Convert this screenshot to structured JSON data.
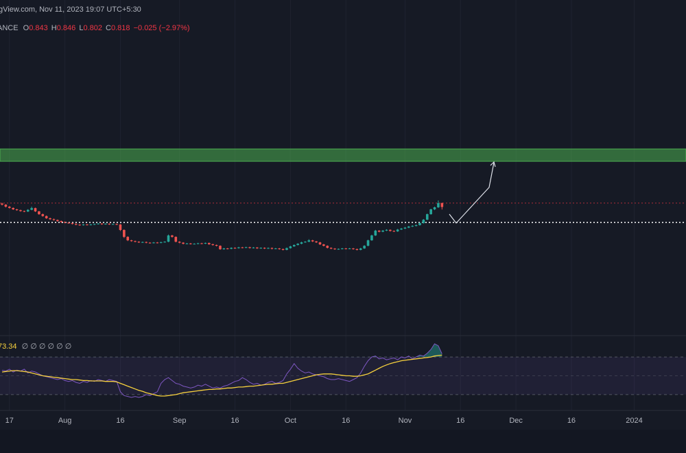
{
  "header": {
    "source_line": "gView.com, Nov 11, 2023 19:07 UTC+5:30",
    "symbol": "ANCE",
    "open_key": "O",
    "high_key": "H",
    "low_key": "L",
    "close_key": "C",
    "change": "−0.025 (−2.97%)"
  },
  "chart_data": {
    "type": "candlestick",
    "up_color": "#26a69a",
    "down_color": "#ef5350",
    "xlim": [
      -0.56,
      185
    ],
    "ylim": [
      0,
      1.9
    ],
    "xticks": [
      {
        "value": 2,
        "label": "17"
      },
      {
        "value": 17,
        "label": "Aug"
      },
      {
        "value": 32,
        "label": "16"
      },
      {
        "value": 48,
        "label": "Sep"
      },
      {
        "value": 63,
        "label": "16"
      },
      {
        "value": 78,
        "label": "Oct"
      },
      {
        "value": 93,
        "label": "16"
      },
      {
        "value": 109,
        "label": "Nov"
      },
      {
        "value": 124,
        "label": "16"
      },
      {
        "value": 139,
        "label": "Dec"
      },
      {
        "value": 154,
        "label": "16"
      },
      {
        "value": 171,
        "label": "2024"
      }
    ],
    "grid": true,
    "zone": {
      "low": 1.11,
      "high": 1.189,
      "color": "#4caf50"
    },
    "price_lines": [
      {
        "value": 0.843,
        "color": "#f23645",
        "style": "dotted"
      },
      {
        "value": 0.719,
        "color": "#ffffff",
        "style": "dotted"
      }
    ],
    "candles": [
      [
        0.84,
        0.845,
        0.828,
        0.833
      ],
      [
        0.833,
        0.836,
        0.815,
        0.82
      ],
      [
        0.82,
        0.824,
        0.808,
        0.812
      ],
      [
        0.812,
        0.815,
        0.799,
        0.803
      ],
      [
        0.803,
        0.806,
        0.794,
        0.798
      ],
      [
        0.798,
        0.801,
        0.788,
        0.792
      ],
      [
        0.792,
        0.795,
        0.785,
        0.789
      ],
      [
        0.789,
        0.804,
        0.786,
        0.8
      ],
      [
        0.8,
        0.82,
        0.797,
        0.811
      ],
      [
        0.811,
        0.814,
        0.786,
        0.79
      ],
      [
        0.79,
        0.793,
        0.768,
        0.772
      ],
      [
        0.772,
        0.776,
        0.756,
        0.76
      ],
      [
        0.76,
        0.764,
        0.742,
        0.746
      ],
      [
        0.746,
        0.75,
        0.736,
        0.74
      ],
      [
        0.74,
        0.744,
        0.731,
        0.735
      ],
      [
        0.735,
        0.738,
        0.724,
        0.728
      ],
      [
        0.728,
        0.731,
        0.718,
        0.722
      ],
      [
        0.722,
        0.725,
        0.714,
        0.718
      ],
      [
        0.718,
        0.721,
        0.711,
        0.715
      ],
      [
        0.715,
        0.718,
        0.706,
        0.71
      ],
      [
        0.71,
        0.713,
        0.701,
        0.705
      ],
      [
        0.705,
        0.708,
        0.698,
        0.702
      ],
      [
        0.702,
        0.709,
        0.699,
        0.706
      ],
      [
        0.706,
        0.709,
        0.7,
        0.704
      ],
      [
        0.704,
        0.709,
        0.701,
        0.706
      ],
      [
        0.706,
        0.712,
        0.703,
        0.709
      ],
      [
        0.709,
        0.715,
        0.706,
        0.712
      ],
      [
        0.712,
        0.715,
        0.704,
        0.708
      ],
      [
        0.708,
        0.714,
        0.705,
        0.711
      ],
      [
        0.711,
        0.714,
        0.703,
        0.707
      ],
      [
        0.707,
        0.712,
        0.704,
        0.709
      ],
      [
        0.709,
        0.712,
        0.702,
        0.706
      ],
      [
        0.706,
        0.709,
        0.665,
        0.671
      ],
      [
        0.671,
        0.675,
        0.62,
        0.627
      ],
      [
        0.627,
        0.631,
        0.6,
        0.605
      ],
      [
        0.605,
        0.608,
        0.596,
        0.6
      ],
      [
        0.6,
        0.603,
        0.592,
        0.596
      ],
      [
        0.596,
        0.599,
        0.588,
        0.592
      ],
      [
        0.592,
        0.597,
        0.589,
        0.594
      ],
      [
        0.594,
        0.597,
        0.586,
        0.59
      ],
      [
        0.59,
        0.593,
        0.584,
        0.588
      ],
      [
        0.588,
        0.594,
        0.585,
        0.591
      ],
      [
        0.591,
        0.594,
        0.585,
        0.589
      ],
      [
        0.589,
        0.596,
        0.586,
        0.593
      ],
      [
        0.593,
        0.599,
        0.59,
        0.596
      ],
      [
        0.596,
        0.642,
        0.593,
        0.636
      ],
      [
        0.636,
        0.64,
        0.622,
        0.627
      ],
      [
        0.627,
        0.63,
        0.592,
        0.596
      ],
      [
        0.596,
        0.599,
        0.586,
        0.59
      ],
      [
        0.59,
        0.593,
        0.579,
        0.583
      ],
      [
        0.583,
        0.588,
        0.58,
        0.585
      ],
      [
        0.585,
        0.588,
        0.578,
        0.582
      ],
      [
        0.582,
        0.586,
        0.579,
        0.583
      ],
      [
        0.583,
        0.589,
        0.58,
        0.586
      ],
      [
        0.586,
        0.589,
        0.58,
        0.584
      ],
      [
        0.584,
        0.591,
        0.581,
        0.588
      ],
      [
        0.588,
        0.591,
        0.576,
        0.58
      ],
      [
        0.58,
        0.583,
        0.571,
        0.575
      ],
      [
        0.575,
        0.578,
        0.566,
        0.57
      ],
      [
        0.57,
        0.573,
        0.544,
        0.548
      ],
      [
        0.548,
        0.556,
        0.545,
        0.553
      ],
      [
        0.553,
        0.556,
        0.547,
        0.551
      ],
      [
        0.551,
        0.56,
        0.548,
        0.557
      ],
      [
        0.557,
        0.56,
        0.551,
        0.555
      ],
      [
        0.555,
        0.563,
        0.552,
        0.56
      ],
      [
        0.56,
        0.563,
        0.554,
        0.558
      ],
      [
        0.558,
        0.564,
        0.555,
        0.561
      ],
      [
        0.561,
        0.564,
        0.552,
        0.556
      ],
      [
        0.556,
        0.562,
        0.553,
        0.559
      ],
      [
        0.559,
        0.562,
        0.55,
        0.554
      ],
      [
        0.554,
        0.56,
        0.551,
        0.557
      ],
      [
        0.557,
        0.56,
        0.549,
        0.553
      ],
      [
        0.553,
        0.559,
        0.55,
        0.556
      ],
      [
        0.556,
        0.559,
        0.547,
        0.551
      ],
      [
        0.551,
        0.556,
        0.548,
        0.553
      ],
      [
        0.553,
        0.556,
        0.545,
        0.549
      ],
      [
        0.549,
        0.552,
        0.54,
        0.544
      ],
      [
        0.544,
        0.559,
        0.541,
        0.555
      ],
      [
        0.555,
        0.57,
        0.552,
        0.566
      ],
      [
        0.566,
        0.579,
        0.563,
        0.575
      ],
      [
        0.575,
        0.587,
        0.572,
        0.583
      ],
      [
        0.583,
        0.596,
        0.58,
        0.592
      ],
      [
        0.592,
        0.6,
        0.589,
        0.596
      ],
      [
        0.596,
        0.612,
        0.593,
        0.605
      ],
      [
        0.605,
        0.608,
        0.594,
        0.598
      ],
      [
        0.598,
        0.601,
        0.588,
        0.592
      ],
      [
        0.592,
        0.595,
        0.575,
        0.579
      ],
      [
        0.579,
        0.582,
        0.566,
        0.57
      ],
      [
        0.57,
        0.573,
        0.553,
        0.557
      ],
      [
        0.557,
        0.56,
        0.548,
        0.552
      ],
      [
        0.552,
        0.555,
        0.544,
        0.548
      ],
      [
        0.548,
        0.553,
        0.545,
        0.55
      ],
      [
        0.55,
        0.556,
        0.547,
        0.553
      ],
      [
        0.553,
        0.556,
        0.547,
        0.551
      ],
      [
        0.551,
        0.556,
        0.548,
        0.553
      ],
      [
        0.553,
        0.556,
        0.545,
        0.549
      ],
      [
        0.549,
        0.552,
        0.54,
        0.544
      ],
      [
        0.544,
        0.557,
        0.541,
        0.553
      ],
      [
        0.553,
        0.574,
        0.55,
        0.57
      ],
      [
        0.57,
        0.609,
        0.567,
        0.605
      ],
      [
        0.605,
        0.641,
        0.602,
        0.636
      ],
      [
        0.636,
        0.672,
        0.633,
        0.667
      ],
      [
        0.667,
        0.67,
        0.656,
        0.66
      ],
      [
        0.66,
        0.671,
        0.657,
        0.667
      ],
      [
        0.667,
        0.676,
        0.664,
        0.672
      ],
      [
        0.672,
        0.675,
        0.661,
        0.665
      ],
      [
        0.665,
        0.668,
        0.658,
        0.662
      ],
      [
        0.662,
        0.678,
        0.659,
        0.674
      ],
      [
        0.674,
        0.684,
        0.671,
        0.68
      ],
      [
        0.68,
        0.69,
        0.677,
        0.686
      ],
      [
        0.686,
        0.697,
        0.683,
        0.693
      ],
      [
        0.693,
        0.701,
        0.69,
        0.697
      ],
      [
        0.697,
        0.706,
        0.694,
        0.702
      ],
      [
        0.702,
        0.719,
        0.699,
        0.715
      ],
      [
        0.715,
        0.741,
        0.712,
        0.737
      ],
      [
        0.737,
        0.776,
        0.734,
        0.772
      ],
      [
        0.772,
        0.807,
        0.769,
        0.803
      ],
      [
        0.803,
        0.82,
        0.798,
        0.816
      ],
      [
        0.816,
        0.86,
        0.812,
        0.843
      ],
      [
        0.843,
        0.846,
        0.802,
        0.818
      ]
    ],
    "rsi": {
      "ylim": [
        0,
        100
      ],
      "levels": [
        70,
        50,
        30
      ],
      "color": "#7e57c2",
      "ma_color": "#f7d13d",
      "placeholders": "∅ ∅ ∅ ∅ ∅ ∅",
      "values": [
        56,
        55,
        57,
        54,
        56,
        55,
        57,
        53,
        55,
        54,
        52,
        50,
        49,
        48,
        47,
        46,
        47,
        45,
        44,
        45,
        43,
        42,
        44,
        43,
        45,
        44,
        46,
        45,
        44,
        46,
        45,
        44,
        33,
        29,
        28,
        27,
        28,
        27,
        28,
        30,
        29,
        31,
        33,
        42,
        46,
        48,
        45,
        42,
        41,
        39,
        38,
        37,
        38,
        40,
        39,
        41,
        39,
        37,
        38,
        37,
        39,
        40,
        42,
        44,
        45,
        48,
        46,
        43,
        41,
        42,
        40,
        41,
        43,
        44,
        42,
        43,
        45,
        52,
        57,
        63,
        58,
        55,
        53,
        54,
        52,
        51,
        50,
        49,
        47,
        46,
        46,
        47,
        46,
        45,
        44,
        46,
        48,
        53,
        60,
        66,
        70,
        71,
        68,
        69,
        67,
        68,
        69,
        67,
        70,
        69,
        71,
        68,
        70,
        72,
        71,
        74,
        78,
        84,
        82,
        73.34
      ],
      "ma": [
        54,
        54.5,
        55,
        55.5,
        55.5,
        55,
        54.5,
        54,
        53,
        52,
        51,
        50,
        49.5,
        49,
        48.5,
        48,
        47.5,
        47,
        46.5,
        46,
        46,
        45.5,
        45,
        45,
        44.5,
        44.5,
        44.5,
        44.5,
        44,
        44,
        44,
        43.5,
        42,
        40.5,
        39,
        37.5,
        36,
        34.5,
        33.5,
        32,
        31,
        30,
        29,
        28.5,
        28.5,
        29,
        29.5,
        30,
        31,
        32,
        32.5,
        33,
        33.5,
        34,
        34.5,
        35,
        35.5,
        35.5,
        36,
        36,
        36.5,
        37,
        37,
        37.5,
        38,
        38,
        38.5,
        39,
        39,
        39.5,
        40,
        40.5,
        41,
        41,
        41.5,
        42,
        42,
        43,
        44,
        45,
        46,
        47,
        48,
        49,
        50,
        51,
        51.5,
        52,
        52,
        52,
        51.5,
        51,
        50.5,
        50,
        50,
        49.5,
        49.5,
        50,
        51,
        52,
        54,
        56,
        58,
        60,
        61.5,
        63,
        64,
        65,
        66,
        66.5,
        67,
        67.5,
        68,
        68.5,
        69,
        69.5,
        70,
        71,
        71.5,
        72
      ]
    }
  }
}
